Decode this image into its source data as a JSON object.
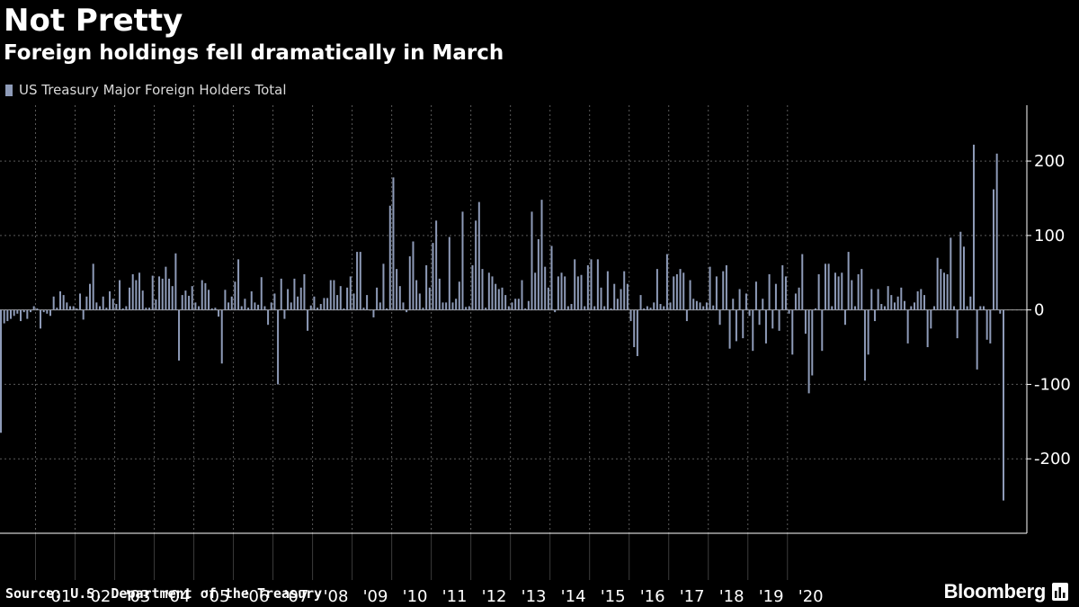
{
  "header": {
    "title": "Not Pretty",
    "subtitle": "Foreign holdings fell dramatically in March"
  },
  "footer": {
    "source": "Source: U.S. Department of the Treasury",
    "brand": "Bloomberg"
  },
  "colors": {
    "background": "#000000",
    "bar": "#8e9bb8",
    "grid": "#5a5a5a",
    "text": "#ffffff"
  },
  "icons": {
    "brand_logo": "bloomberg-chart-icon"
  },
  "chart_data": {
    "type": "bar",
    "title": "Not Pretty",
    "subtitle": "Foreign holdings fell dramatically in March",
    "legend": [
      "US Treasury Major Foreign Holders Total"
    ],
    "legend_position": "top-left",
    "xlabel": "",
    "ylabel": "",
    "ylim": [
      -300,
      275
    ],
    "yticks": [
      -200,
      -100,
      0,
      100,
      200
    ],
    "ytick_labels": [
      "-200",
      "-100",
      "0",
      "100",
      "200"
    ],
    "y_axis_side": "right",
    "grid": true,
    "start": "2000-02",
    "frequency": "monthly",
    "year_labels": [
      "'01",
      "'02",
      "'03",
      "'04",
      "'05",
      "'06",
      "'07",
      "'08",
      "'09",
      "'10",
      "'11",
      "'12",
      "'13",
      "'14",
      "'15",
      "'16",
      "'17",
      "'18",
      "'19",
      "'20"
    ],
    "series": [
      {
        "name": "US Treasury Major Foreign Holders Total",
        "values": [
          -165,
          -18,
          -15,
          -12,
          -8,
          -5,
          -15,
          -3,
          -12,
          -3,
          5,
          2,
          -25,
          -3,
          -5,
          -8,
          18,
          3,
          25,
          20,
          10,
          5,
          5,
          2,
          22,
          -13,
          18,
          35,
          62,
          10,
          5,
          18,
          3,
          25,
          15,
          8,
          40,
          2,
          5,
          30,
          48,
          40,
          50,
          26,
          3,
          3,
          46,
          14,
          45,
          42,
          58,
          42,
          32,
          76,
          -68,
          20,
          26,
          19,
          32,
          10,
          5,
          40,
          36,
          27,
          2,
          3,
          -9,
          -72,
          27,
          10,
          18,
          38,
          68,
          5,
          15,
          3,
          25,
          10,
          7,
          44,
          5,
          -20,
          10,
          22,
          -100,
          42,
          -12,
          28,
          10,
          42,
          18,
          30,
          48,
          -28,
          6,
          18,
          3,
          8,
          16,
          16,
          40,
          40,
          20,
          32,
          2,
          30,
          45,
          22,
          78,
          78,
          3,
          20,
          0,
          -10,
          30,
          10,
          62,
          2,
          140,
          178,
          55,
          32,
          10,
          -3,
          72,
          92,
          40,
          22,
          3,
          60,
          30,
          90,
          120,
          42,
          10,
          10,
          98,
          10,
          15,
          38,
          132,
          4,
          5,
          60,
          120,
          145,
          55,
          3,
          50,
          45,
          35,
          28,
          30,
          20,
          5,
          10,
          15,
          15,
          40,
          2,
          12,
          132,
          50,
          95,
          148,
          58,
          30,
          86,
          -3,
          45,
          50,
          45,
          5,
          8,
          68,
          45,
          47,
          5,
          60,
          68,
          5,
          68,
          30,
          5,
          52,
          2,
          35,
          15,
          28,
          52,
          35,
          -15,
          -50,
          -62,
          20,
          2,
          5,
          3,
          10,
          55,
          8,
          5,
          75,
          10,
          45,
          48,
          55,
          50,
          -15,
          40,
          15,
          12,
          10,
          5,
          10,
          58,
          6,
          45,
          -20,
          52,
          60,
          -52,
          15,
          -42,
          28,
          -38,
          22,
          -8,
          -55,
          38,
          -20,
          15,
          -45,
          48,
          -25,
          35,
          -28,
          60,
          45,
          -5,
          -60,
          22,
          30,
          75,
          -32,
          -112,
          -88,
          2,
          48,
          -55,
          62,
          62,
          5,
          50,
          45,
          50,
          -20,
          78,
          40,
          5,
          48,
          55,
          -95,
          -60,
          28,
          -15,
          28,
          8,
          5,
          32,
          20,
          10,
          18,
          30,
          12,
          -45,
          5,
          10,
          25,
          28,
          20,
          -50,
          -25,
          5,
          70,
          55,
          50,
          48,
          97,
          5,
          -38,
          105,
          85,
          5,
          18,
          222,
          -80,
          5,
          5,
          -40,
          -45,
          162,
          210,
          -5,
          -256
        ]
      }
    ]
  }
}
